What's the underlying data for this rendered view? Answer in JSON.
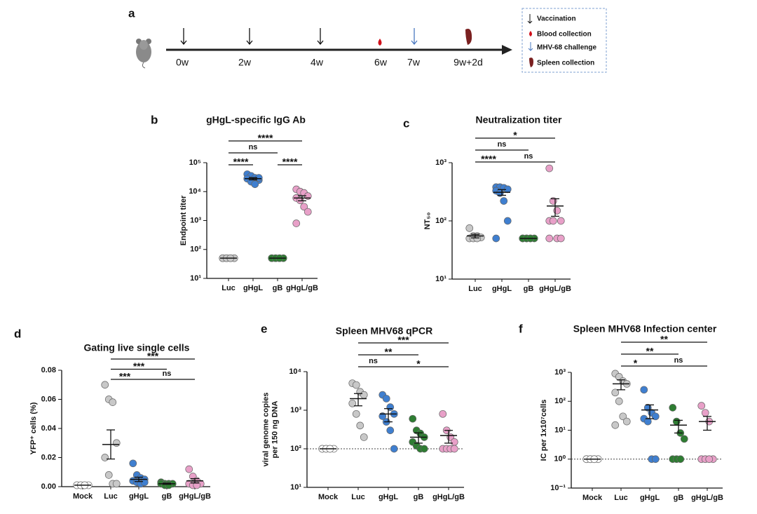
{
  "timeline": {
    "panel": "a",
    "timepoints": [
      "0w",
      "2w",
      "4w",
      "6w",
      "7w",
      "9w+2d"
    ],
    "legend": [
      "Vaccination",
      "Blood collection",
      "MHV-68 challenge",
      "Spleen collection"
    ]
  },
  "chart_data": [
    {
      "type": "dotplot",
      "panel": "b",
      "title": "gHgL-specific  IgG Ab",
      "ylabel": "Endpoint titer",
      "log": true,
      "ylim": [
        10,
        100000
      ],
      "yticks": [
        {
          "value": 10,
          "label": "10¹"
        },
        {
          "value": 100,
          "label": "10²"
        },
        {
          "value": 1000,
          "label": "10³"
        },
        {
          "value": 10000,
          "label": "10⁴"
        },
        {
          "value": 100000,
          "label": "10⁵"
        }
      ],
      "categories": [
        "Luc",
        "gHgL",
        "gB",
        "gHgL/gB"
      ],
      "colors": [
        "#c8c8c8",
        "#3f7fd0",
        "#2e7d32",
        "#e8a0c8"
      ],
      "points": [
        [
          50,
          50,
          50,
          50,
          50,
          50,
          50
        ],
        [
          40000,
          35000,
          30000,
          25000,
          28000,
          22000,
          18000,
          30000
        ],
        [
          50,
          50,
          50,
          50,
          50,
          50,
          50
        ],
        [
          12000,
          10000,
          9000,
          7000,
          6000,
          5000,
          3000,
          2000,
          800
        ]
      ],
      "means": [
        50,
        28000,
        50,
        6000
      ],
      "sems": [
        0,
        2500,
        0,
        1200
      ],
      "comparisons": [
        {
          "groups": [
            "Luc",
            "gHgL"
          ],
          "label": "****"
        },
        {
          "groups": [
            "gB",
            "gHgL/gB"
          ],
          "label": "****"
        },
        {
          "groups": [
            "Luc",
            "gB"
          ],
          "label": "ns"
        },
        {
          "groups": [
            "Luc",
            "gHgL/gB"
          ],
          "label": "****"
        }
      ]
    },
    {
      "type": "dotplot",
      "panel": "c",
      "title": "Neutralization  titer",
      "ylabel": "NT₅₀",
      "log": true,
      "ylim": [
        10,
        1000
      ],
      "yticks": [
        {
          "value": 10,
          "label": "10¹"
        },
        {
          "value": 100,
          "label": "10²"
        },
        {
          "value": 1000,
          "label": "10³"
        }
      ],
      "categories": [
        "Luc",
        "gHgL",
        "gB",
        "gHgL/gB"
      ],
      "colors": [
        "#c8c8c8",
        "#3f7fd0",
        "#2e7d32",
        "#e8a0c8"
      ],
      "points": [
        [
          75,
          55,
          55,
          52,
          50,
          50,
          50
        ],
        [
          380,
          380,
          370,
          350,
          330,
          300,
          220,
          100,
          50
        ],
        [
          50,
          50,
          50,
          50,
          50,
          50,
          50
        ],
        [
          800,
          220,
          150,
          100,
          100,
          100,
          50,
          50,
          50
        ]
      ],
      "means": [
        55,
        310,
        50,
        180
      ],
      "sems": [
        4,
        35,
        0,
        60
      ],
      "comparisons": [
        {
          "groups": [
            "Luc",
            "gHgL"
          ],
          "label": "****"
        },
        {
          "groups": [
            "gHgL",
            "gHgL/gB"
          ],
          "label": "ns"
        },
        {
          "groups": [
            "Luc",
            "gB"
          ],
          "label": "ns"
        },
        {
          "groups": [
            "Luc",
            "gHgL/gB"
          ],
          "label": "*"
        }
      ]
    },
    {
      "type": "dotplot",
      "panel": "d",
      "title": "Gating live single cells",
      "ylabel": "YFP⁺ cells (%)",
      "log": false,
      "ylim": [
        0,
        0.08
      ],
      "yticks": [
        {
          "value": 0,
          "label": "0.00"
        },
        0.02,
        0.04,
        0.06,
        0.08
      ],
      "categories": [
        "Mock",
        "Luc",
        "gHgL",
        "gB",
        "gHgL/gB"
      ],
      "colors": [
        "#ffffff",
        "#c8c8c8",
        "#3f7fd0",
        "#2e7d32",
        "#e8a0c8"
      ],
      "points": [
        [
          0.001,
          0.001,
          0.001,
          0.001,
          0.001,
          0.001,
          0.001
        ],
        [
          0.07,
          0.06,
          0.058,
          0.03,
          0.02,
          0.008,
          0.002,
          0.002
        ],
        [
          0.016,
          0.008,
          0.006,
          0.005,
          0.004,
          0.003,
          0.002,
          0.003
        ],
        [
          0.003,
          0.002,
          0.002,
          0.002,
          0.002,
          0.001,
          0.001
        ],
        [
          0.012,
          0.007,
          0.004,
          0.002,
          0.002,
          0.001,
          0.001
        ]
      ],
      "means": [
        0.001,
        0.029,
        0.005,
        0.002,
        0.004
      ],
      "sems": [
        0,
        0.01,
        0.0015,
        0.0004,
        0.0015
      ],
      "comparisons": [
        {
          "groups": [
            "Luc",
            "gHgL"
          ],
          "label": "***"
        },
        {
          "groups": [
            "gHgL",
            "gHgL/gB"
          ],
          "label": "ns"
        },
        {
          "groups": [
            "Luc",
            "gB"
          ],
          "label": "***"
        },
        {
          "groups": [
            "Luc",
            "gHgL/gB"
          ],
          "label": "***"
        }
      ]
    },
    {
      "type": "dotplot",
      "panel": "e",
      "title": "Spleen MHV68 qPCR",
      "ylabel": [
        "viral genome copies",
        "per 150 ng DNA"
      ],
      "log": true,
      "ylim": [
        10,
        10000
      ],
      "yticks": [
        {
          "value": 10,
          "label": "10¹"
        },
        {
          "value": 100,
          "label": "10²"
        },
        {
          "value": 1000,
          "label": "10³"
        },
        {
          "value": 10000,
          "label": "10⁴"
        }
      ],
      "reference_line": 100,
      "categories": [
        "Mock",
        "Luc",
        "gHgL",
        "gB",
        "gHgL/gB"
      ],
      "colors": [
        "#ffffff",
        "#c8c8c8",
        "#3f7fd0",
        "#2e7d32",
        "#e8a0c8"
      ],
      "points": [
        [
          100,
          100,
          100,
          100,
          100,
          100,
          100
        ],
        [
          5000,
          4500,
          3000,
          2500,
          1500,
          800,
          400,
          200
        ],
        [
          2500,
          2000,
          1200,
          800,
          700,
          500,
          300,
          100
        ],
        [
          600,
          300,
          250,
          200,
          150,
          120,
          100,
          100
        ],
        [
          800,
          300,
          200,
          150,
          100,
          100,
          100,
          100
        ]
      ],
      "means": [
        100,
        2000,
        800,
        200,
        220
      ],
      "sems": [
        0,
        700,
        300,
        60,
        80
      ],
      "comparisons": [
        {
          "groups": [
            "Luc",
            "gHgL"
          ],
          "label": "ns"
        },
        {
          "groups": [
            "gHgL",
            "gHgL/gB"
          ],
          "label": "*"
        },
        {
          "groups": [
            "Luc",
            "gB"
          ],
          "label": "**"
        },
        {
          "groups": [
            "Luc",
            "gHgL/gB"
          ],
          "label": "***"
        }
      ]
    },
    {
      "type": "dotplot",
      "panel": "f",
      "title": "Spleen MHV68 Infection  center",
      "ylabel": "IC per 1x10⁷cells",
      "log": true,
      "ylim": [
        0.1,
        1000
      ],
      "yticks": [
        {
          "value": 0.1,
          "label": "10⁻¹"
        },
        {
          "value": 1,
          "label": "10⁰"
        },
        {
          "value": 10,
          "label": "10¹"
        },
        {
          "value": 100,
          "label": "10²"
        },
        {
          "value": 1000,
          "label": "10³"
        }
      ],
      "reference_line": 1,
      "categories": [
        "Mock",
        "Luc",
        "gHgL",
        "gB",
        "gHgL/gB"
      ],
      "colors": [
        "#ffffff",
        "#c8c8c8",
        "#3f7fd0",
        "#2e7d32",
        "#e8a0c8"
      ],
      "points": [
        [
          1,
          1,
          1,
          1,
          1,
          1,
          1
        ],
        [
          900,
          700,
          500,
          400,
          200,
          100,
          30,
          20,
          15
        ],
        [
          250,
          60,
          40,
          30,
          25,
          20,
          1,
          1
        ],
        [
          60,
          20,
          8,
          5,
          1,
          1,
          1
        ],
        [
          70,
          40,
          20,
          1,
          1,
          1,
          1
        ]
      ],
      "means": [
        1,
        400,
        50,
        15,
        20
      ],
      "sems": [
        0,
        150,
        25,
        7,
        10
      ],
      "comparisons": [
        {
          "groups": [
            "Luc",
            "gHgL"
          ],
          "label": "*"
        },
        {
          "groups": [
            "gHgL",
            "gHgL/gB"
          ],
          "label": "ns"
        },
        {
          "groups": [
            "Luc",
            "gB"
          ],
          "label": "**"
        },
        {
          "groups": [
            "Luc",
            "gHgL/gB"
          ],
          "label": "**"
        }
      ]
    }
  ]
}
